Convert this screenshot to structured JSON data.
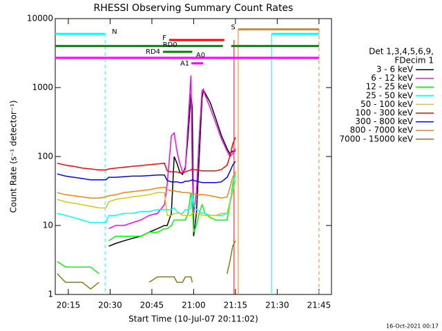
{
  "chart_data": {
    "type": "line",
    "title": "RHESSI Observing Summary Count Rates",
    "x_label": "Start Time (10-Jul-07 20:11:02)",
    "y_label": "Count Rate (s⁻¹ detector⁻¹)",
    "timestamp": "16-Oct-2021 00:17",
    "legend_header": [
      "Det 1,3,4,5,6,9,",
      "FDecim 1"
    ],
    "log_y": true,
    "xlim": [
      10.3,
      109.5
    ],
    "xticks": [
      {
        "value": 15,
        "label": "20:15"
      },
      {
        "value": 30,
        "label": "20:30"
      },
      {
        "value": 45,
        "label": "20:45"
      },
      {
        "value": 60,
        "label": "21:00"
      },
      {
        "value": 75,
        "label": "21:15"
      },
      {
        "value": 90,
        "label": "21:30"
      },
      {
        "value": 105,
        "label": "21:45"
      }
    ],
    "ylim": [
      1,
      10000
    ],
    "yticks": [
      1,
      10,
      100,
      1000,
      10000
    ],
    "x": [
      11,
      14,
      17,
      20,
      23,
      26,
      28.5,
      29.5,
      32,
      35,
      38,
      41,
      44,
      47,
      49.5,
      50.5,
      52,
      53,
      54,
      55,
      56,
      57,
      58,
      59,
      59.5,
      60,
      61,
      62,
      63,
      63.5,
      64,
      66,
      68,
      70,
      72,
      73,
      74,
      75
    ],
    "series": [
      {
        "name": "3 - 6 keV",
        "color": "#000000",
        "values": [
          null,
          null,
          null,
          null,
          null,
          null,
          null,
          5,
          5.5,
          6,
          6.5,
          7,
          8,
          9,
          10,
          10,
          15,
          100,
          80,
          60,
          55,
          70,
          200,
          800,
          500,
          7,
          15,
          100,
          700,
          900,
          850,
          600,
          350,
          200,
          130,
          110,
          120,
          120
        ]
      },
      {
        "name": "6 - 12 keV",
        "color": "#ff00ff",
        "values": [
          null,
          null,
          null,
          null,
          null,
          null,
          null,
          9,
          10,
          10,
          11,
          12,
          14,
          15,
          20,
          40,
          200,
          220,
          120,
          80,
          60,
          65,
          300,
          1500,
          60,
          15,
          30,
          200,
          900,
          950,
          800,
          500,
          300,
          180,
          120,
          100,
          110,
          130
        ]
      },
      {
        "name": "12 - 25 keV",
        "color": "#00ff00",
        "values": [
          3,
          2.5,
          2.5,
          2.5,
          2.5,
          2,
          null,
          6,
          7,
          7,
          7,
          7,
          8,
          8,
          9,
          9,
          10,
          12,
          12,
          12,
          12,
          12,
          15,
          30,
          20,
          8,
          10,
          15,
          20,
          18,
          15,
          13,
          12,
          12,
          12,
          20,
          40,
          60
        ]
      },
      {
        "name": "25 - 50 keV",
        "color": "#00ffff",
        "values": [
          15,
          14,
          13,
          12,
          11,
          11,
          11,
          14,
          14,
          15,
          15,
          16,
          16,
          17,
          17,
          17,
          17,
          18,
          16,
          15,
          15,
          17,
          17,
          18,
          30,
          20,
          17,
          16,
          15,
          15,
          15,
          14,
          14,
          14,
          15,
          22,
          35,
          55
        ]
      },
      {
        "name": "50 - 100 keV",
        "color": "#d8c800",
        "values": [
          24,
          22,
          21,
          20,
          19,
          18,
          18,
          22,
          24,
          25,
          26,
          27,
          28,
          30,
          30,
          14,
          14,
          15,
          15,
          15,
          14,
          14,
          14,
          14,
          15,
          15,
          15,
          15,
          14,
          14,
          14,
          14,
          14,
          15,
          15,
          20,
          30,
          45
        ]
      },
      {
        "name": "100 - 300 keV",
        "color": "#ff0000",
        "values": [
          80,
          75,
          72,
          68,
          66,
          64,
          64,
          66,
          68,
          70,
          72,
          74,
          76,
          78,
          80,
          62,
          60,
          60,
          60,
          58,
          58,
          60,
          62,
          64,
          66,
          65,
          64,
          63,
          62,
          62,
          62,
          62,
          62,
          65,
          75,
          100,
          150,
          190
        ]
      },
      {
        "name": "300 - 800 keV",
        "color": "#0000ff",
        "values": [
          56,
          52,
          50,
          48,
          46,
          46,
          46,
          50,
          50,
          51,
          52,
          52,
          53,
          54,
          54,
          45,
          43,
          43,
          43,
          42,
          42,
          44,
          44,
          45,
          46,
          45,
          44,
          43,
          42,
          42,
          42,
          42,
          42,
          43,
          50,
          60,
          75,
          85
        ]
      },
      {
        "name": "800 - 7000 keV",
        "color": "#ff8000",
        "values": [
          30,
          28,
          27,
          26,
          25,
          25,
          26,
          27,
          28,
          30,
          31,
          32,
          33,
          35,
          36,
          33,
          32,
          32,
          31,
          31,
          30,
          30,
          30,
          29,
          29,
          29,
          28,
          28,
          28,
          28,
          28,
          27,
          26,
          25,
          26,
          35,
          50,
          60
        ]
      },
      {
        "name": "7000 - 15000 keV",
        "color": "#808000",
        "values": [
          2,
          1.5,
          1.5,
          1.5,
          1.2,
          1.5,
          null,
          null,
          null,
          null,
          null,
          null,
          1.5,
          1.8,
          1.8,
          1.8,
          1.8,
          1.8,
          1.5,
          1.5,
          1.5,
          1.8,
          1.8,
          1.8,
          1.5,
          null,
          null,
          null,
          null,
          null,
          null,
          null,
          null,
          null,
          2,
          3,
          5,
          6
        ]
      }
    ],
    "flags": [
      {
        "label": "N",
        "color": "#00ffff",
        "y": 6000,
        "segments": [
          [
            10.3,
            28.2
          ],
          [
            88,
            105
          ]
        ]
      },
      {
        "label": "S",
        "color": "#ff8000",
        "y": 7000,
        "segments": [
          [
            76,
            105
          ]
        ]
      },
      {
        "label": "F",
        "color": "#ff0000",
        "y": 4900,
        "segments": [
          [
            51.2,
            71
          ]
        ]
      },
      {
        "label": "RD0",
        "color": "#008000",
        "y": 4000,
        "segments": [
          [
            10.3,
            70.5
          ],
          [
            73.5,
            105
          ]
        ]
      },
      {
        "label": "RD4",
        "color": "#008000",
        "y": 3300,
        "segments": [
          [
            49,
            59.5
          ]
        ]
      },
      {
        "label": "A0",
        "color": "#ff00ff",
        "y": 2700,
        "segments": [
          [
            10.3,
            105
          ]
        ]
      },
      {
        "label": "A1",
        "color": "#ff00ff",
        "y": 2250,
        "segments": [
          [
            59.2,
            63.4
          ]
        ]
      }
    ],
    "vlines": [
      {
        "x": 28.2,
        "color": "#00ffff",
        "dashed": true,
        "top": 6000
      },
      {
        "x": 74.5,
        "color": "#ff0000",
        "dashed": false,
        "top": 4900
      },
      {
        "x": 76,
        "color": "#ff8000",
        "dashed": false,
        "top": 7000
      },
      {
        "x": 88,
        "color": "#00ffff",
        "dashed": false,
        "top": 6000
      },
      {
        "x": 105,
        "color": "#ff8000",
        "dashed": true,
        "top": 7000
      }
    ]
  }
}
